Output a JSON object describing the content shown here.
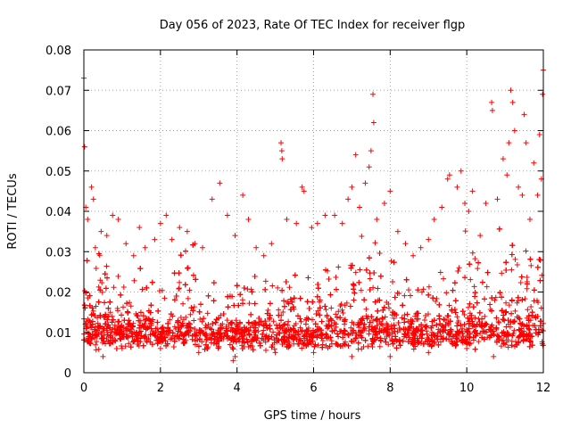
{
  "chart_data": {
    "type": "scatter",
    "title": "Day 056 of 2023, Rate Of TEC Index for receiver flgp",
    "xlabel": "GPS time / hours",
    "ylabel": "ROTI / TECUs",
    "xlim": [
      0,
      12
    ],
    "ylim": [
      0,
      0.08
    ],
    "grid": true,
    "xticks": [
      0,
      2,
      4,
      6,
      8,
      10,
      12
    ],
    "xtick_labels": [
      "0",
      "2",
      "4",
      "6",
      "8",
      "10",
      "12"
    ],
    "yticks": [
      0,
      0.01,
      0.02,
      0.03,
      0.04,
      0.05,
      0.06,
      0.07,
      0.08
    ],
    "ytick_labels": [
      "0",
      "0.01",
      "0.02",
      "0.03",
      "0.04",
      "0.05",
      "0.06",
      "0.07",
      "0.08"
    ],
    "marker": "plus",
    "color": "#ff0000",
    "series": [
      {
        "name": "ROTI",
        "points": [
          [
            0.0,
            0.073
          ],
          [
            0.02,
            0.056
          ],
          [
            0.05,
            0.041
          ],
          [
            0.1,
            0.038
          ],
          [
            0.2,
            0.046
          ],
          [
            0.25,
            0.043
          ],
          [
            0.3,
            0.031
          ],
          [
            0.45,
            0.035
          ],
          [
            0.6,
            0.034
          ],
          [
            0.75,
            0.039
          ],
          [
            0.9,
            0.038
          ],
          [
            1.1,
            0.032
          ],
          [
            1.3,
            0.029
          ],
          [
            1.45,
            0.036
          ],
          [
            1.6,
            0.031
          ],
          [
            1.85,
            0.033
          ],
          [
            2.0,
            0.037
          ],
          [
            2.15,
            0.039
          ],
          [
            2.3,
            0.033
          ],
          [
            2.5,
            0.036
          ],
          [
            2.7,
            0.035
          ],
          [
            2.9,
            0.032
          ],
          [
            3.1,
            0.031
          ],
          [
            3.35,
            0.043
          ],
          [
            3.55,
            0.047
          ],
          [
            3.75,
            0.039
          ],
          [
            3.95,
            0.034
          ],
          [
            4.15,
            0.044
          ],
          [
            4.3,
            0.038
          ],
          [
            4.5,
            0.031
          ],
          [
            4.7,
            0.029
          ],
          [
            4.9,
            0.032
          ],
          [
            5.15,
            0.057
          ],
          [
            5.17,
            0.055
          ],
          [
            5.18,
            0.053
          ],
          [
            5.3,
            0.038
          ],
          [
            5.55,
            0.037
          ],
          [
            5.7,
            0.046
          ],
          [
            5.75,
            0.045
          ],
          [
            5.95,
            0.036
          ],
          [
            6.1,
            0.037
          ],
          [
            6.3,
            0.039
          ],
          [
            6.55,
            0.039
          ],
          [
            6.75,
            0.037
          ],
          [
            6.9,
            0.043
          ],
          [
            7.0,
            0.046
          ],
          [
            7.1,
            0.054
          ],
          [
            7.2,
            0.041
          ],
          [
            7.35,
            0.047
          ],
          [
            7.45,
            0.051
          ],
          [
            7.5,
            0.055
          ],
          [
            7.55,
            0.069
          ],
          [
            7.57,
            0.062
          ],
          [
            7.65,
            0.038
          ],
          [
            7.85,
            0.042
          ],
          [
            8.0,
            0.045
          ],
          [
            8.2,
            0.035
          ],
          [
            8.4,
            0.032
          ],
          [
            8.6,
            0.029
          ],
          [
            8.8,
            0.031
          ],
          [
            9.0,
            0.033
          ],
          [
            9.15,
            0.038
          ],
          [
            9.35,
            0.041
          ],
          [
            9.5,
            0.048
          ],
          [
            9.55,
            0.049
          ],
          [
            9.75,
            0.046
          ],
          [
            9.85,
            0.05
          ],
          [
            9.95,
            0.042
          ],
          [
            10.05,
            0.04
          ],
          [
            10.15,
            0.045
          ],
          [
            10.35,
            0.034
          ],
          [
            10.5,
            0.042
          ],
          [
            10.65,
            0.067
          ],
          [
            10.67,
            0.065
          ],
          [
            10.8,
            0.043
          ],
          [
            10.95,
            0.053
          ],
          [
            11.05,
            0.049
          ],
          [
            11.1,
            0.057
          ],
          [
            11.15,
            0.07
          ],
          [
            11.2,
            0.067
          ],
          [
            11.25,
            0.06
          ],
          [
            11.35,
            0.046
          ],
          [
            11.45,
            0.044
          ],
          [
            11.5,
            0.064
          ],
          [
            11.55,
            0.057
          ],
          [
            11.65,
            0.038
          ],
          [
            11.75,
            0.052
          ],
          [
            11.85,
            0.044
          ],
          [
            11.9,
            0.059
          ],
          [
            11.95,
            0.048
          ],
          [
            12.0,
            0.075
          ],
          [
            11.98,
            0.069
          ],
          [
            0.5,
            0.004
          ],
          [
            1.0,
            0.006
          ],
          [
            2.0,
            0.006
          ],
          [
            3.0,
            0.005
          ],
          [
            3.9,
            0.003
          ],
          [
            3.95,
            0.004
          ],
          [
            5.0,
            0.005
          ],
          [
            6.0,
            0.005
          ],
          [
            7.0,
            0.004
          ],
          [
            8.0,
            0.004
          ],
          [
            9.0,
            0.005
          ],
          [
            10.0,
            0.006
          ],
          [
            10.7,
            0.004
          ],
          [
            11.0,
            0.007
          ]
        ]
      }
    ]
  }
}
